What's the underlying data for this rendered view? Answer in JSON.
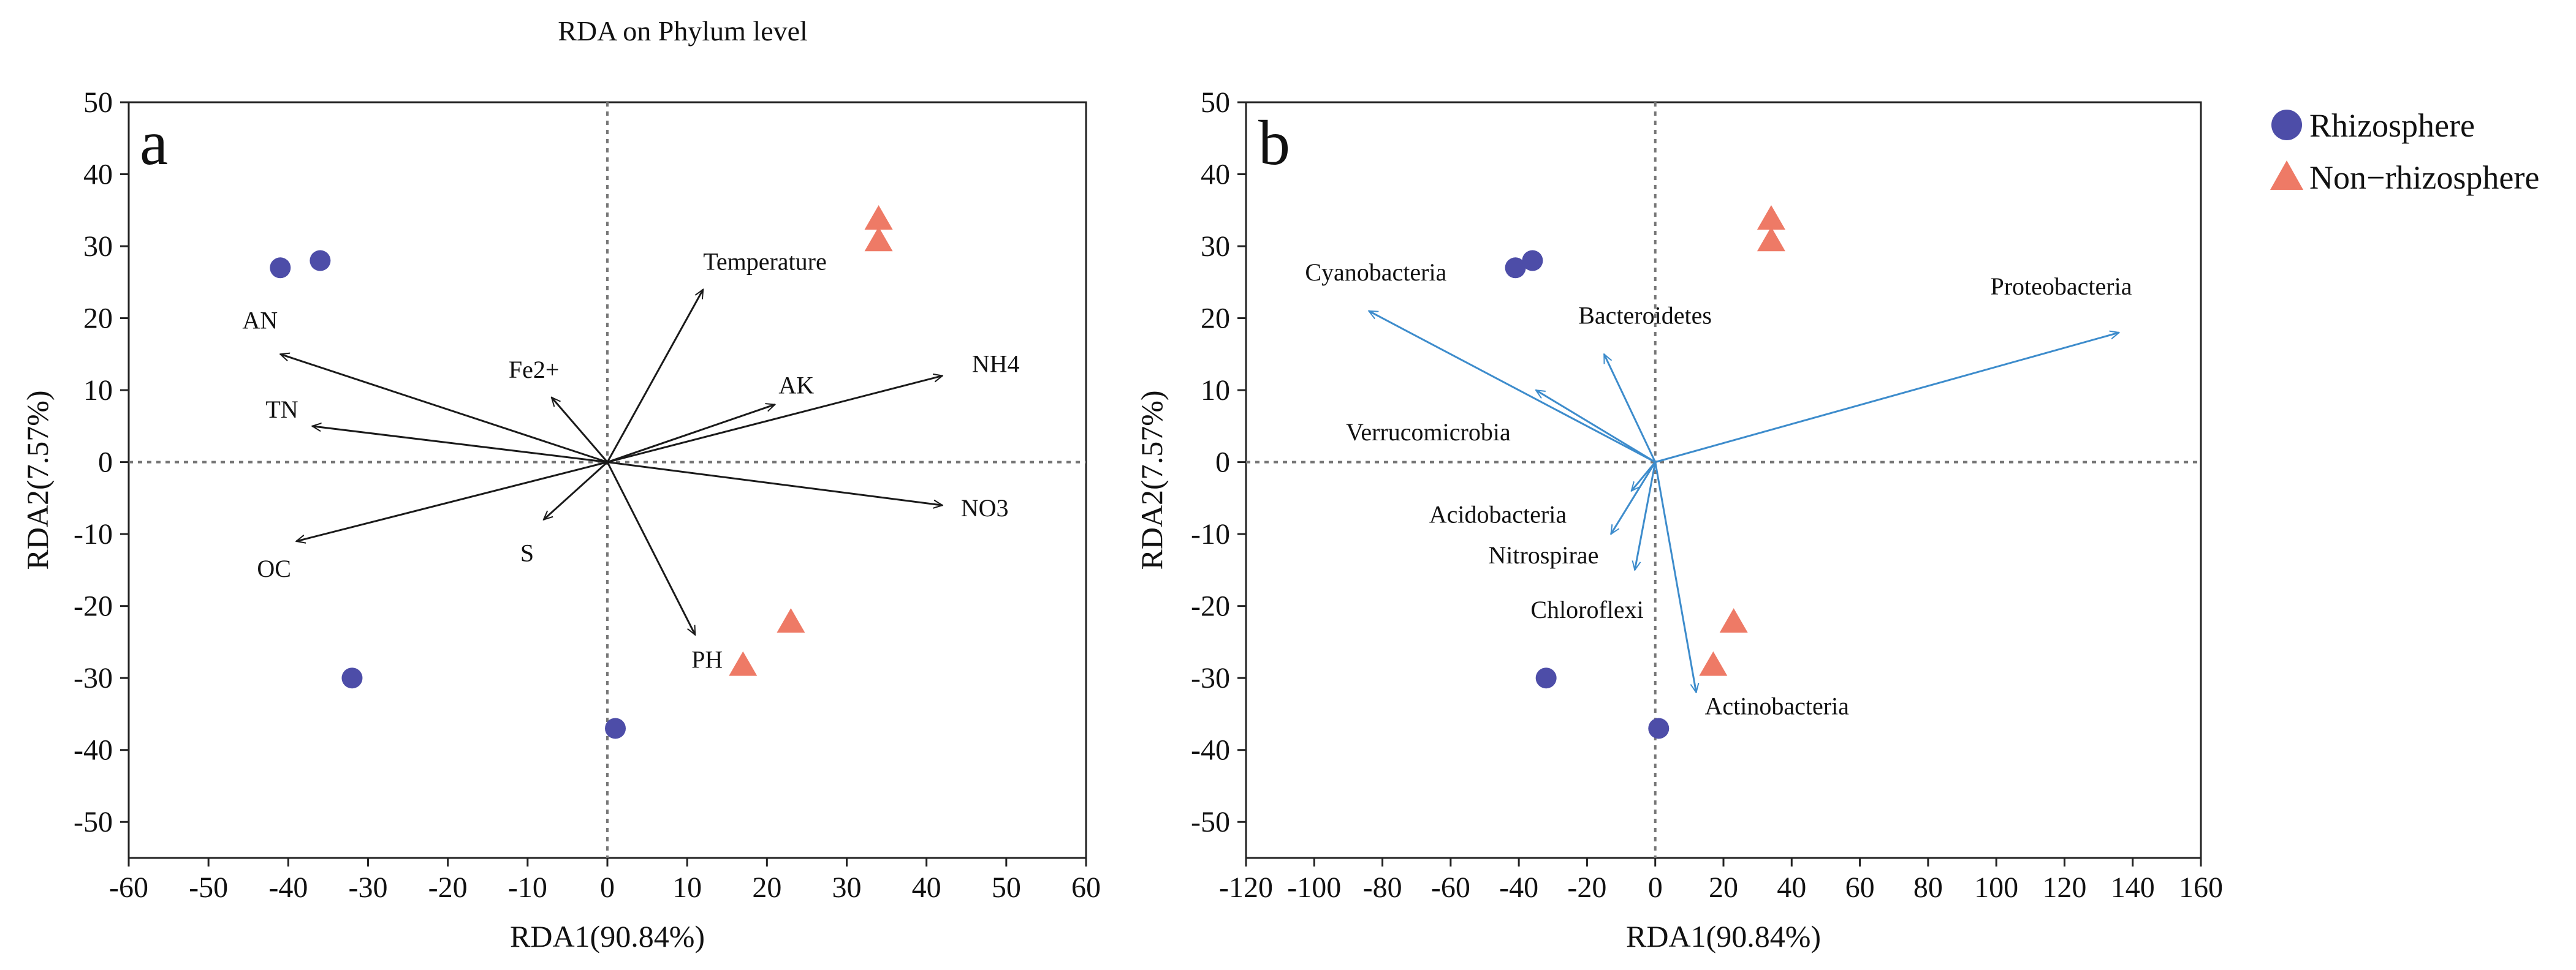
{
  "figure_title": "RDA on Phylum level",
  "legend": {
    "items": [
      {
        "label": "Rhizosphere",
        "shape": "circle",
        "color": "#4d4da8"
      },
      {
        "label": "Non−rhizosphere",
        "shape": "triangle",
        "color": "#ee7a66"
      }
    ]
  },
  "chart_data": [
    {
      "type": "scatter",
      "panel": "a",
      "title": "RDA on Phylum level",
      "xlabel": "RDA1(90.84%)",
      "ylabel": "RDA2(7.57%)",
      "xlim": [
        -60,
        60
      ],
      "ylim": [
        -55,
        50
      ],
      "xticks": [
        -60,
        -50,
        -40,
        -30,
        -20,
        -10,
        0,
        10,
        20,
        30,
        40,
        50,
        60
      ],
      "yticks": [
        -50,
        -40,
        -30,
        -20,
        -10,
        0,
        10,
        20,
        30,
        40,
        50
      ],
      "arrow_color": "#1a1a1a",
      "series": [
        {
          "name": "Rhizosphere",
          "marker": "circle",
          "color": "#4d4da8",
          "points": [
            [
              -41,
              27
            ],
            [
              -36,
              28
            ],
            [
              -32,
              -30
            ],
            [
              1,
              -37
            ]
          ]
        },
        {
          "name": "Non−rhizosphere",
          "marker": "triangle",
          "color": "#ee7a66",
          "points": [
            [
              34,
              34
            ],
            [
              34,
              31
            ],
            [
              23,
              -22
            ],
            [
              17,
              -28
            ]
          ]
        }
      ],
      "vectors": [
        {
          "label": "Temperature",
          "x": 12,
          "y": 24
        },
        {
          "label": "AN",
          "x": -41,
          "y": 15
        },
        {
          "label": "Fe2+",
          "x": -7,
          "y": 9
        },
        {
          "label": "AK",
          "x": 21,
          "y": 8
        },
        {
          "label": "NH4",
          "x": 42,
          "y": 12
        },
        {
          "label": "TN",
          "x": -37,
          "y": 5
        },
        {
          "label": "NO3",
          "x": 42,
          "y": -6
        },
        {
          "label": "S",
          "x": -8,
          "y": -8
        },
        {
          "label": "OC",
          "x": -39,
          "y": -11
        },
        {
          "label": "PH",
          "x": 11,
          "y": -24
        }
      ]
    },
    {
      "type": "scatter",
      "panel": "b",
      "title": "",
      "xlabel": "RDA1(90.84%)",
      "ylabel": "RDA2(7.57%)",
      "xlim": [
        -120,
        160
      ],
      "ylim": [
        -55,
        50
      ],
      "xticks": [
        -120,
        -100,
        -80,
        -60,
        -40,
        -20,
        0,
        20,
        40,
        60,
        80,
        100,
        120,
        140,
        160
      ],
      "yticks": [
        -50,
        -40,
        -30,
        -20,
        -10,
        0,
        10,
        20,
        30,
        40,
        50
      ],
      "arrow_color": "#3d8ccc",
      "series": [
        {
          "name": "Rhizosphere",
          "marker": "circle",
          "color": "#4d4da8",
          "points": [
            [
              -41,
              27
            ],
            [
              -36,
              28
            ],
            [
              -32,
              -30
            ],
            [
              1,
              -37
            ]
          ]
        },
        {
          "name": "Non−rhizosphere",
          "marker": "triangle",
          "color": "#ee7a66",
          "points": [
            [
              34,
              34
            ],
            [
              34,
              31
            ],
            [
              23,
              -22
            ],
            [
              17,
              -28
            ]
          ]
        }
      ],
      "vectors": [
        {
          "label": "Cyanobacteria",
          "x": -84,
          "y": 21
        },
        {
          "label": "Proteobacteria",
          "x": 136,
          "y": 18
        },
        {
          "label": "Bacteroidetes",
          "x": -15,
          "y": 15
        },
        {
          "label": "Verrucomicrobia",
          "x": -35,
          "y": 10
        },
        {
          "label": "Acidobacteria",
          "x": -7,
          "y": -4
        },
        {
          "label": "Nitrospirae",
          "x": -13,
          "y": -10
        },
        {
          "label": "Chloroflexi",
          "x": -6,
          "y": -15
        },
        {
          "label": "Actinobacteria",
          "x": 12,
          "y": -32
        }
      ]
    }
  ]
}
